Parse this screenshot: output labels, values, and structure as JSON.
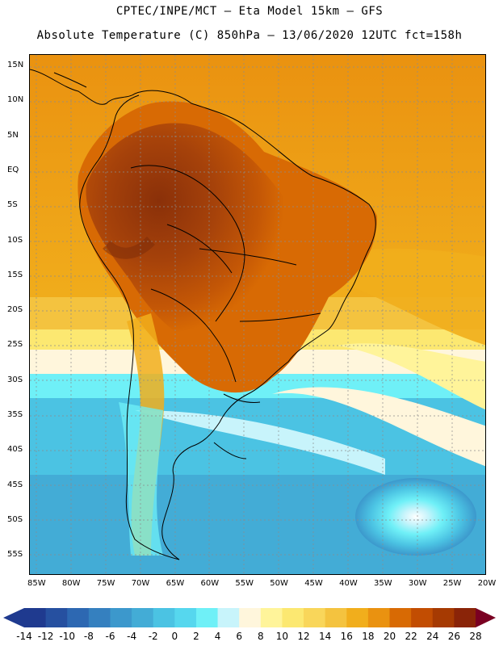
{
  "title_line1": "CPTEC/INPE/MCT —  Eta Model 15km — GFS",
  "title_line2": "Absolute Temperature (C) 850hPa — 13/06/2020 12UTC fct=158h",
  "lat_labels": [
    "15N",
    "10N",
    "5N",
    "EQ",
    "5S",
    "10S",
    "15S",
    "20S",
    "25S",
    "30S",
    "35S",
    "40S",
    "45S",
    "50S",
    "55S"
  ],
  "lon_labels": [
    "85W",
    "80W",
    "75W",
    "70W",
    "65W",
    "60W",
    "55W",
    "50W",
    "45W",
    "40W",
    "35W",
    "30W",
    "25W",
    "20W"
  ],
  "colorbar": {
    "labels": [
      "-14",
      "-12",
      "-10",
      "-8",
      "-6",
      "-4",
      "-2",
      "0",
      "2",
      "4",
      "6",
      "8",
      "10",
      "12",
      "14",
      "16",
      "18",
      "20",
      "22",
      "24",
      "26",
      "28"
    ],
    "colors": [
      "#1f3a8f",
      "#2650a0",
      "#2d68b2",
      "#3580bf",
      "#3c98cc",
      "#43acd6",
      "#4bc3e3",
      "#56d7ee",
      "#6ff0f7",
      "#c8f4fb",
      "#fff6dc",
      "#fff49a",
      "#fce871",
      "#f9d65a",
      "#f4c33f",
      "#f1ae1c",
      "#ea9210",
      "#d86a04",
      "#c24d02",
      "#a63a02",
      "#8a2408"
    ],
    "under_color": "#1f3a8f",
    "over_color": "#7a0022"
  }
}
